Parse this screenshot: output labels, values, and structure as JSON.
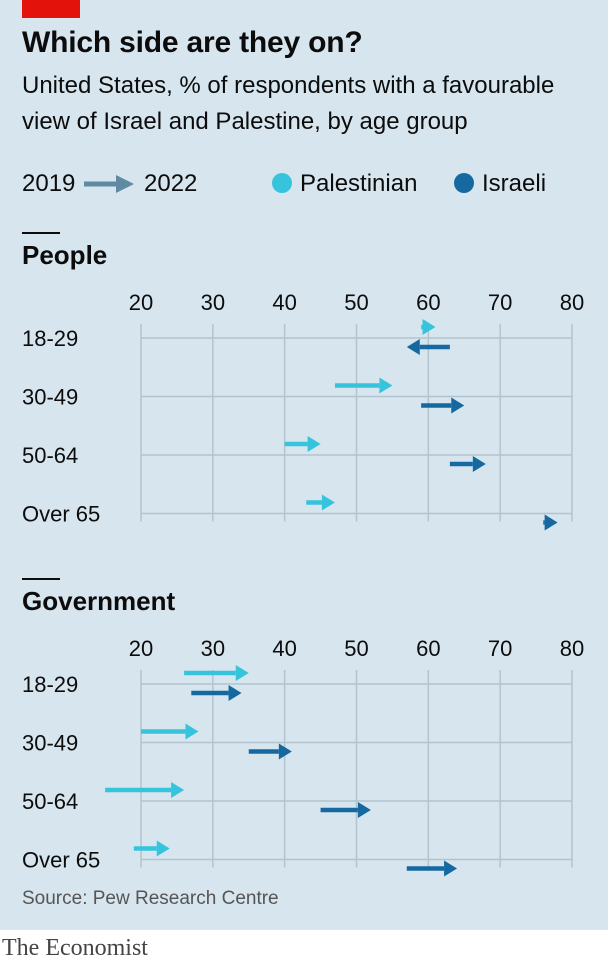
{
  "header": {
    "title": "Which side are they on?",
    "subtitle_line1": "United States, % of respondents with a favourable",
    "subtitle_line2": "view of Israel and Palestine, by age group"
  },
  "legend": {
    "from_year": "2019",
    "to_year": "2022",
    "palestinian_label": "Palestinian",
    "israeli_label": "Israeli"
  },
  "colors": {
    "palestinian": "#36c4dc",
    "israeli": "#1569a0",
    "arrow_legend": "#5e8aa2",
    "grid": "#b4c4cf",
    "background": "#d7e5ee",
    "accent_red": "#e3120b"
  },
  "chart_data": [
    {
      "type": "arrow",
      "title": "People",
      "x_ticks": [
        20,
        30,
        40,
        50,
        60,
        70,
        80
      ],
      "xlim": [
        20,
        80
      ],
      "categories": [
        "18-29",
        "30-49",
        "50-64",
        "Over 65"
      ],
      "series": [
        {
          "name": "Palestinian",
          "from": [
            59,
            47,
            40,
            43
          ],
          "to": [
            61,
            55,
            45,
            47
          ]
        },
        {
          "name": "Israeli",
          "from": [
            63,
            59,
            63,
            76
          ],
          "to": [
            57,
            65,
            68,
            78
          ]
        }
      ]
    },
    {
      "type": "arrow",
      "title": "Government",
      "x_ticks": [
        20,
        30,
        40,
        50,
        60,
        70,
        80
      ],
      "xlim": [
        20,
        80
      ],
      "categories": [
        "18-29",
        "30-49",
        "50-64",
        "Over 65"
      ],
      "series": [
        {
          "name": "Palestinian",
          "from": [
            26,
            20,
            15,
            19
          ],
          "to": [
            35,
            28,
            26,
            24
          ]
        },
        {
          "name": "Israeli",
          "from": [
            27,
            35,
            45,
            57
          ],
          "to": [
            34,
            41,
            52,
            64
          ]
        }
      ]
    }
  ],
  "source": "Source: Pew Research Centre",
  "brand": "The Economist"
}
